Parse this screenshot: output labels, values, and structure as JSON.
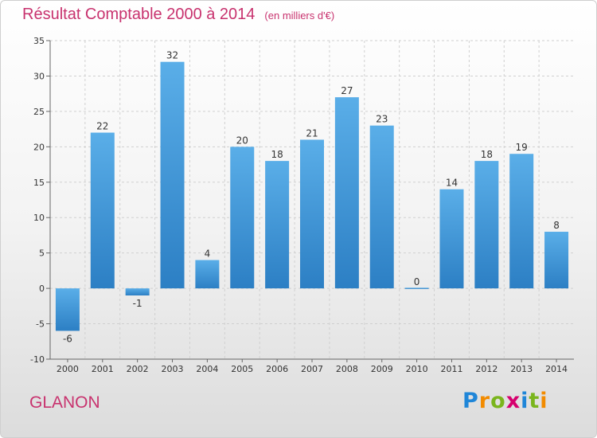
{
  "header": {
    "title": "Résultat Comptable 2000 à 2014",
    "subtitle": "(en milliers d'€)"
  },
  "footer": {
    "commune": "GLANON",
    "logo_letters": [
      {
        "char": "P",
        "color": "#1f86d8"
      },
      {
        "char": "r",
        "color": "#f28b00"
      },
      {
        "char": "o",
        "color": "#7ab51d"
      },
      {
        "char": "x",
        "color": "#d6006e"
      },
      {
        "char": "i",
        "color": "#1f86d8"
      },
      {
        "char": "t",
        "color": "#7ab51d"
      },
      {
        "char": "i",
        "color": "#f28b00"
      }
    ]
  },
  "chart_data": {
    "type": "bar",
    "title": "Résultat Comptable 2000 à 2014",
    "subtitle": "(en milliers d'€)",
    "xlabel": "",
    "ylabel": "",
    "categories": [
      "2000",
      "2001",
      "2002",
      "2003",
      "2004",
      "2005",
      "2006",
      "2007",
      "2008",
      "2009",
      "2010",
      "2011",
      "2012",
      "2013",
      "2014"
    ],
    "values": [
      -6,
      22,
      -1,
      32,
      4,
      20,
      18,
      21,
      27,
      23,
      0,
      14,
      18,
      19,
      8
    ],
    "ylim": [
      -10,
      35
    ],
    "yticks": [
      -10,
      -5,
      0,
      5,
      10,
      15,
      20,
      25,
      30,
      35
    ],
    "grid": true,
    "bar_color_light": "#5aaee8",
    "bar_color_dark": "#2c7fc4"
  }
}
